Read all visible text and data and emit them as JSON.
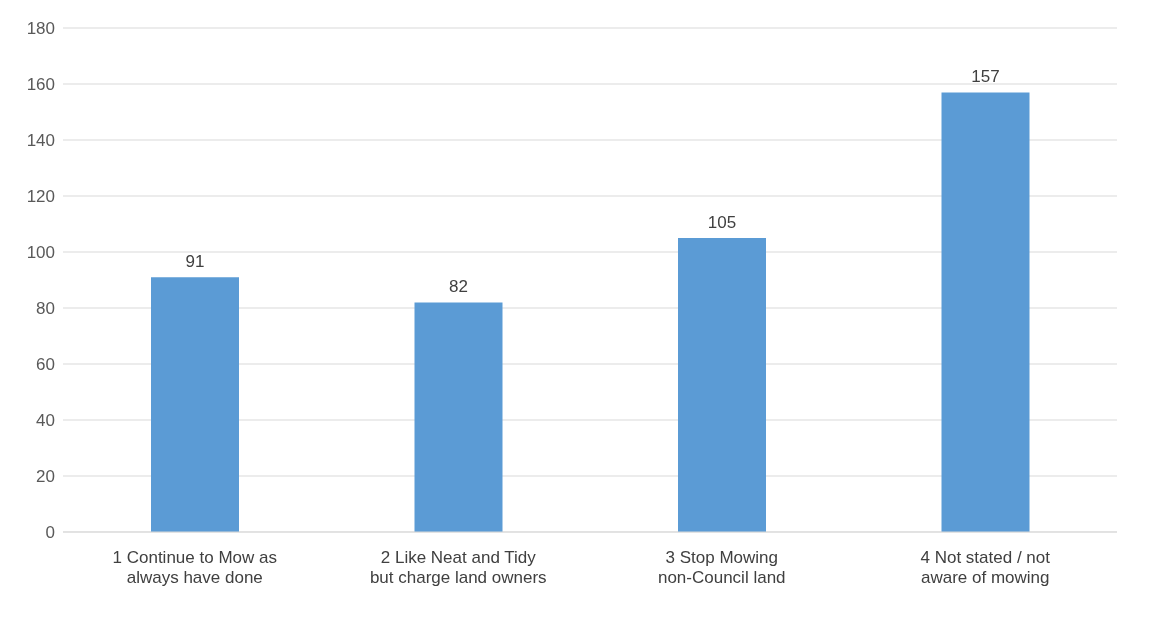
{
  "chart_data": {
    "type": "bar",
    "categories": [
      "1 Continue to Mow as always have done",
      "2 Like Neat and Tidy but charge land owners",
      "3 Stop Mowing non-Council land",
      "4 Not stated / not aware of mowing"
    ],
    "values": [
      91,
      82,
      105,
      157
    ],
    "color": "#5b9bd5",
    "ylim": [
      0,
      180
    ],
    "yticks": [
      0,
      20,
      40,
      60,
      80,
      100,
      120,
      140,
      160,
      180
    ],
    "grid": "y",
    "data_labels": true,
    "legend": false
  }
}
